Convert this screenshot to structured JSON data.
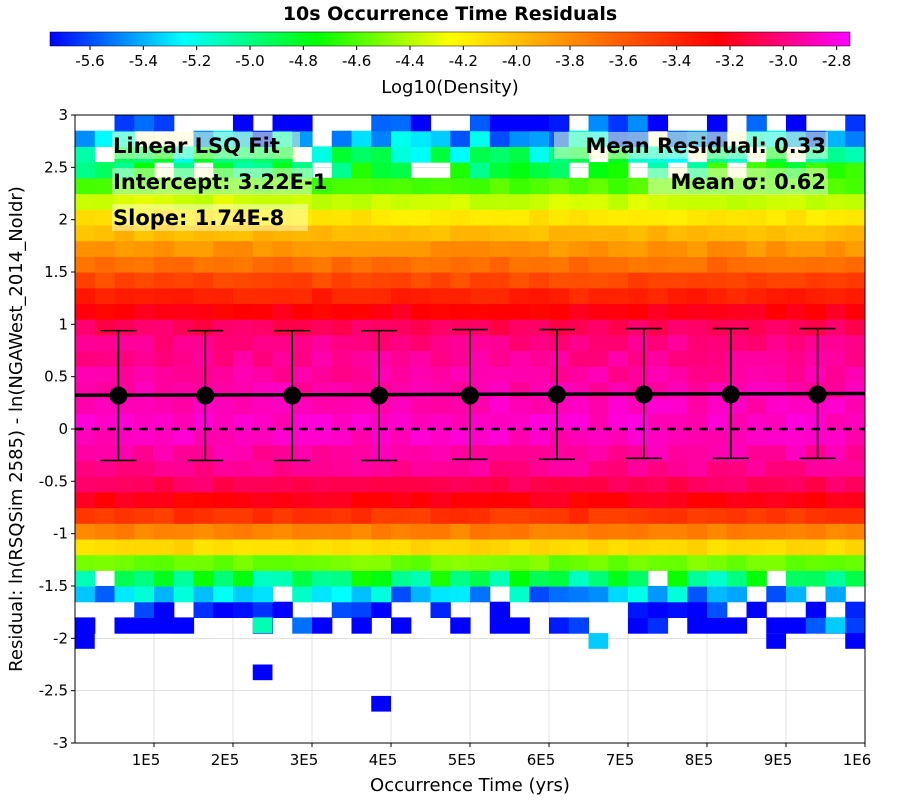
{
  "chart_data": {
    "type": "heatmap",
    "title": "10s Occurrence Time Residuals",
    "xlabel": "Occurrence Time (yrs)",
    "ylabel": "Residual: ln(RSQSim 2585) - ln(NGAWest_2014_NoIdr)",
    "xlim": [
      0,
      1000000
    ],
    "ylim": [
      -3,
      3
    ],
    "x_ticks": [
      100000,
      200000,
      300000,
      400000,
      500000,
      600000,
      700000,
      800000,
      900000,
      1000000
    ],
    "x_tick_labels": [
      "1E5",
      "2E5",
      "3E5",
      "4E5",
      "5E5",
      "6E5",
      "7E5",
      "8E5",
      "9E5",
      "1E6"
    ],
    "y_ticks": [
      -3,
      -2.5,
      -2,
      -1.5,
      -1,
      -0.5,
      0,
      0.5,
      1,
      1.5,
      2,
      2.5,
      3
    ],
    "y_tick_labels": [
      "-3",
      "-2.5",
      "-2",
      "-1.5",
      "-1",
      "-0.5",
      "0",
      "0.5",
      "1",
      "1.5",
      "2",
      "2.5",
      "3"
    ],
    "colorbar": {
      "label": "Log10(Density)",
      "range": [
        -5.75,
        -2.75
      ],
      "ticks": [
        -5.6,
        -5.4,
        -5.2,
        -5.0,
        -4.8,
        -4.6,
        -4.4,
        -4.2,
        -4.0,
        -3.8,
        -3.6,
        -3.4,
        -3.2,
        -3.0,
        -2.8
      ],
      "tick_labels": [
        "-5.6",
        "-5.4",
        "-5.2",
        "-5.0",
        "-4.8",
        "-4.6",
        "-4.4",
        "-4.2",
        "-4.0",
        "-3.8",
        "-3.6",
        "-3.4",
        "-3.2",
        "-3.0",
        "-2.8"
      ],
      "stops": [
        "#0000ff",
        "#00ffff",
        "#00ff00",
        "#ffff00",
        "#ff8000",
        "#ff0000",
        "#ff00ff"
      ]
    },
    "heatmap": {
      "x_bins": 40,
      "y_bin_size": 0.15,
      "profile_log10_density": [
        {
          "y": 2.85,
          "value": -5.7
        },
        {
          "y": 2.7,
          "value": -5.1
        },
        {
          "y": 2.55,
          "value": -4.95
        },
        {
          "y": 2.4,
          "value": -4.75
        },
        {
          "y": 2.25,
          "value": -4.45
        },
        {
          "y": 2.1,
          "value": -4.25
        },
        {
          "y": 1.95,
          "value": -4.05
        },
        {
          "y": 1.8,
          "value": -3.9
        },
        {
          "y": 1.65,
          "value": -3.75
        },
        {
          "y": 1.5,
          "value": -3.6
        },
        {
          "y": 1.35,
          "value": -3.45
        },
        {
          "y": 1.2,
          "value": -3.3
        },
        {
          "y": 1.05,
          "value": -3.15
        },
        {
          "y": 0.9,
          "value": -3.0
        },
        {
          "y": 0.0,
          "value": -2.85
        },
        {
          "y": -0.45,
          "value": -3.0
        },
        {
          "y": -0.6,
          "value": -3.15
        },
        {
          "y": -0.75,
          "value": -3.3
        },
        {
          "y": -0.9,
          "value": -3.6
        },
        {
          "y": -1.05,
          "value": -3.9
        },
        {
          "y": -1.2,
          "value": -4.3
        },
        {
          "y": -1.35,
          "value": -4.75
        },
        {
          "y": -1.5,
          "value": -5.1
        },
        {
          "y": -1.65,
          "value": -5.65
        },
        {
          "y": -1.8,
          "value": -5.75
        }
      ],
      "sparse_cells": [
        {
          "x": 100000,
          "y": -1.95,
          "value": -5.75
        },
        {
          "x": 225000,
          "y": -1.95,
          "value": -5.1
        },
        {
          "x": 225000,
          "y": -2.35,
          "value": -5.75
        },
        {
          "x": 350000,
          "y": -1.95,
          "value": -5.75
        },
        {
          "x": 375000,
          "y": -2.6,
          "value": -5.75
        },
        {
          "x": 650000,
          "y": -2.05,
          "value": -5.35
        },
        {
          "x": 875000,
          "y": -1.95,
          "value": -5.75
        },
        {
          "x": 875000,
          "y": -2.05,
          "value": -5.75
        },
        {
          "x": 950000,
          "y": -1.95,
          "value": -5.35
        },
        {
          "x": 975000,
          "y": -2.05,
          "value": -5.75
        },
        {
          "x": 0,
          "y": -2.05,
          "value": -5.75
        }
      ]
    },
    "fit_line": {
      "name": "Linear LSQ Fit",
      "intercept": 0.322,
      "slope": 1.74e-08
    },
    "binned_means": {
      "x": [
        55000,
        165000,
        275000,
        385000,
        500000,
        610000,
        720000,
        830000,
        940000
      ],
      "mean": [
        0.32,
        0.32,
        0.32,
        0.32,
        0.32,
        0.33,
        0.33,
        0.33,
        0.33
      ],
      "upper": [
        0.94,
        0.94,
        0.94,
        0.94,
        0.95,
        0.95,
        0.96,
        0.96,
        0.96
      ],
      "lower": [
        -0.3,
        -0.3,
        -0.3,
        -0.3,
        -0.29,
        -0.29,
        -0.28,
        -0.28,
        -0.28
      ]
    },
    "zero_line_y": 0,
    "annotations": {
      "fit_title": "Linear LSQ Fit",
      "intercept": "Intercept: 3.22E-1",
      "slope": "Slope: 1.74E-8",
      "mean_residual": "Mean Residual: 0.33",
      "mean_sigma": "Mean σ: 0.62"
    },
    "grid": true,
    "legend": "none"
  }
}
